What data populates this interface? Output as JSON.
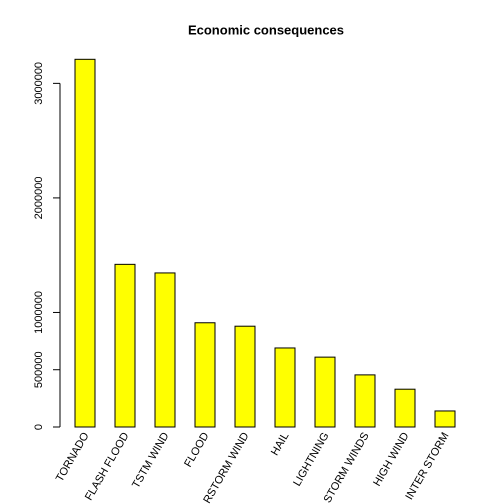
{
  "chart_data": {
    "type": "bar",
    "title": "Economic consequences",
    "categories": [
      "TORNADO",
      "FLASH FLOOD",
      "TSTM WIND",
      "FLOOD",
      "RSTORM WIND",
      "HAIL",
      "LIGHTNING",
      "STORM WINDS",
      "HIGH WIND",
      "INTER STORM"
    ],
    "values": [
      3210000,
      1420000,
      1345000,
      910000,
      880000,
      690000,
      610000,
      455000,
      330000,
      140000
    ],
    "color": "#ffff00",
    "ylim": [
      0,
      3300000
    ],
    "yticks": [
      0,
      500000,
      1000000,
      2000000,
      3000000
    ]
  }
}
